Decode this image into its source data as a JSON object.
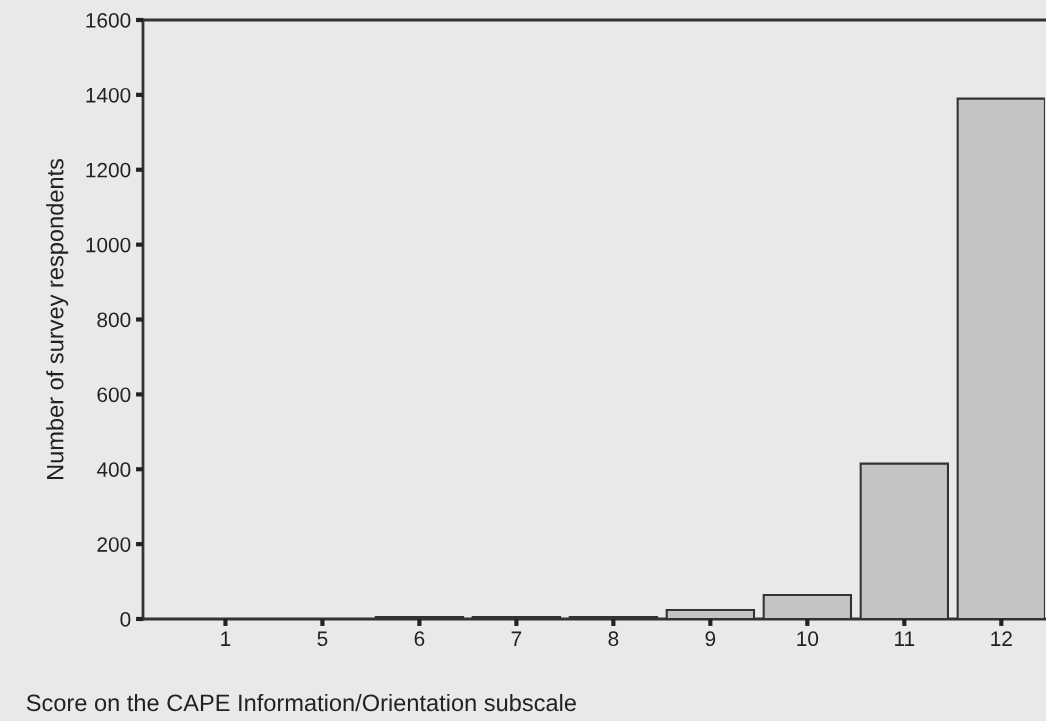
{
  "chart_data": {
    "type": "bar",
    "xlabel": "Score on the CAPE Information/Orientation subscale",
    "ylabel": "Number of survey respondents",
    "categories": [
      "1",
      "5",
      "6",
      "7",
      "8",
      "9",
      "10",
      "11",
      "12"
    ],
    "values": [
      null,
      null,
      5,
      5,
      5,
      24,
      64,
      415,
      1390
    ],
    "color": "#c4c4c4",
    "ylim": [
      0,
      1600
    ],
    "yticks": [
      0,
      200,
      400,
      600,
      800,
      1000,
      1200,
      1400,
      1600
    ],
    "grid": false,
    "legend": false
  }
}
